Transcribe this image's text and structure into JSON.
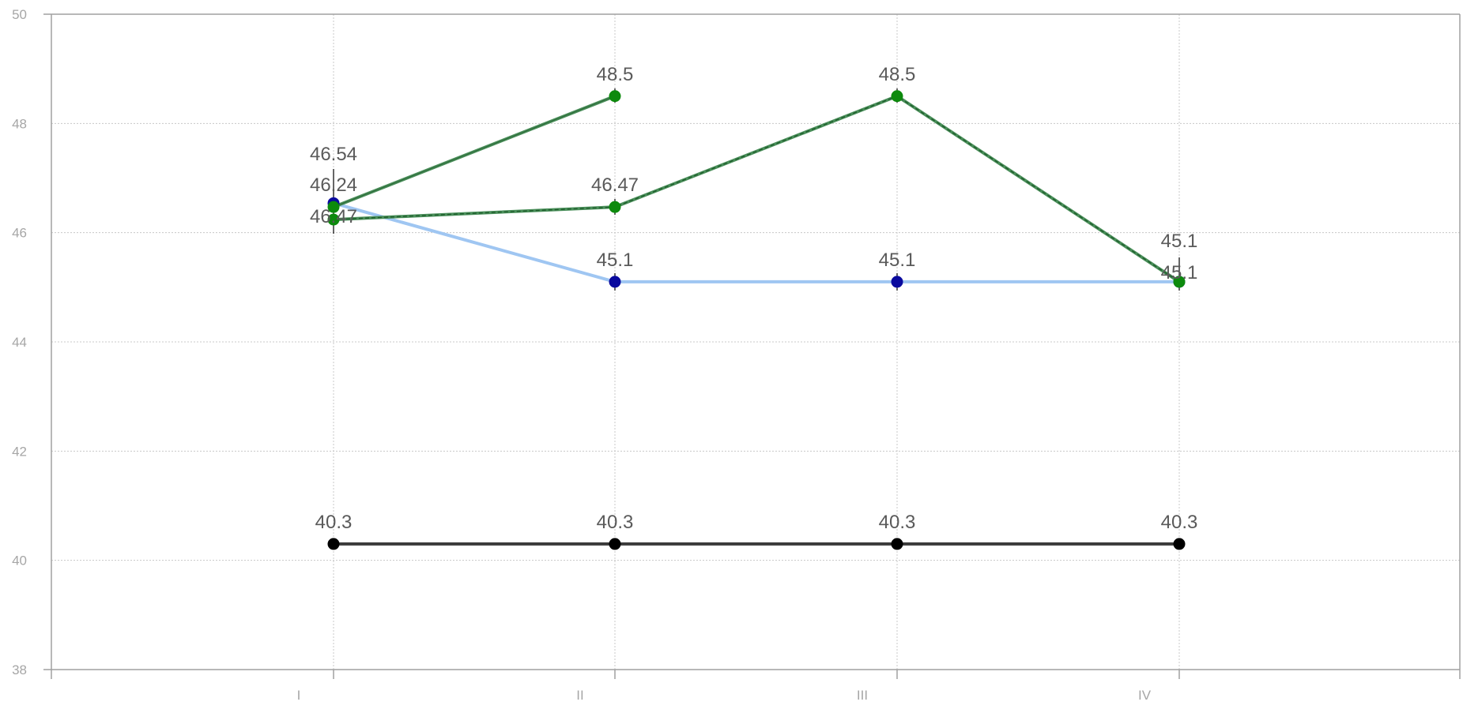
{
  "chart_data": {
    "type": "line",
    "title": "",
    "xlabel": "",
    "ylabel": "",
    "categories": [
      "I",
      "II",
      "III",
      "IV"
    ],
    "ylim": [
      38,
      50
    ],
    "yticks": [
      "38",
      "40",
      "42",
      "44",
      "46",
      "48",
      "50"
    ],
    "grid": true,
    "legend": "none",
    "series": [
      {
        "line_color": "#9fc6f2",
        "marker_color": "#0a0a9e",
        "dash": "solid",
        "x": [
          0,
          1,
          2,
          3
        ],
        "values": [
          46.54,
          45.1,
          45.1,
          45.1
        ],
        "labels": [
          "46.54",
          "45.1",
          "45.1",
          "45.1"
        ]
      },
      {
        "line_color": "#4a8f5a",
        "marker_color": "#0d8a0d",
        "dash": "solid",
        "x": [
          0,
          1
        ],
        "values": [
          46.47,
          48.5
        ],
        "labels": [
          "46.47",
          "48.5"
        ]
      },
      {
        "line_color": "#4a8f5a",
        "marker_color": "#0d8a0d",
        "dash": "dashed",
        "x": [
          0,
          1,
          2,
          3
        ],
        "values": [
          46.24,
          46.47,
          48.5,
          45.1
        ],
        "labels": [
          "46.24",
          "46.47",
          "48.5",
          "45.1"
        ]
      },
      {
        "line_color": "#3a3a3a",
        "marker_color": "#000000",
        "dash": "solid",
        "x": [
          0,
          1,
          2,
          3
        ],
        "values": [
          40.3,
          40.3,
          40.3,
          40.3
        ],
        "labels": [
          "40.3",
          "40.3",
          "40.3",
          "40.3"
        ]
      }
    ]
  }
}
